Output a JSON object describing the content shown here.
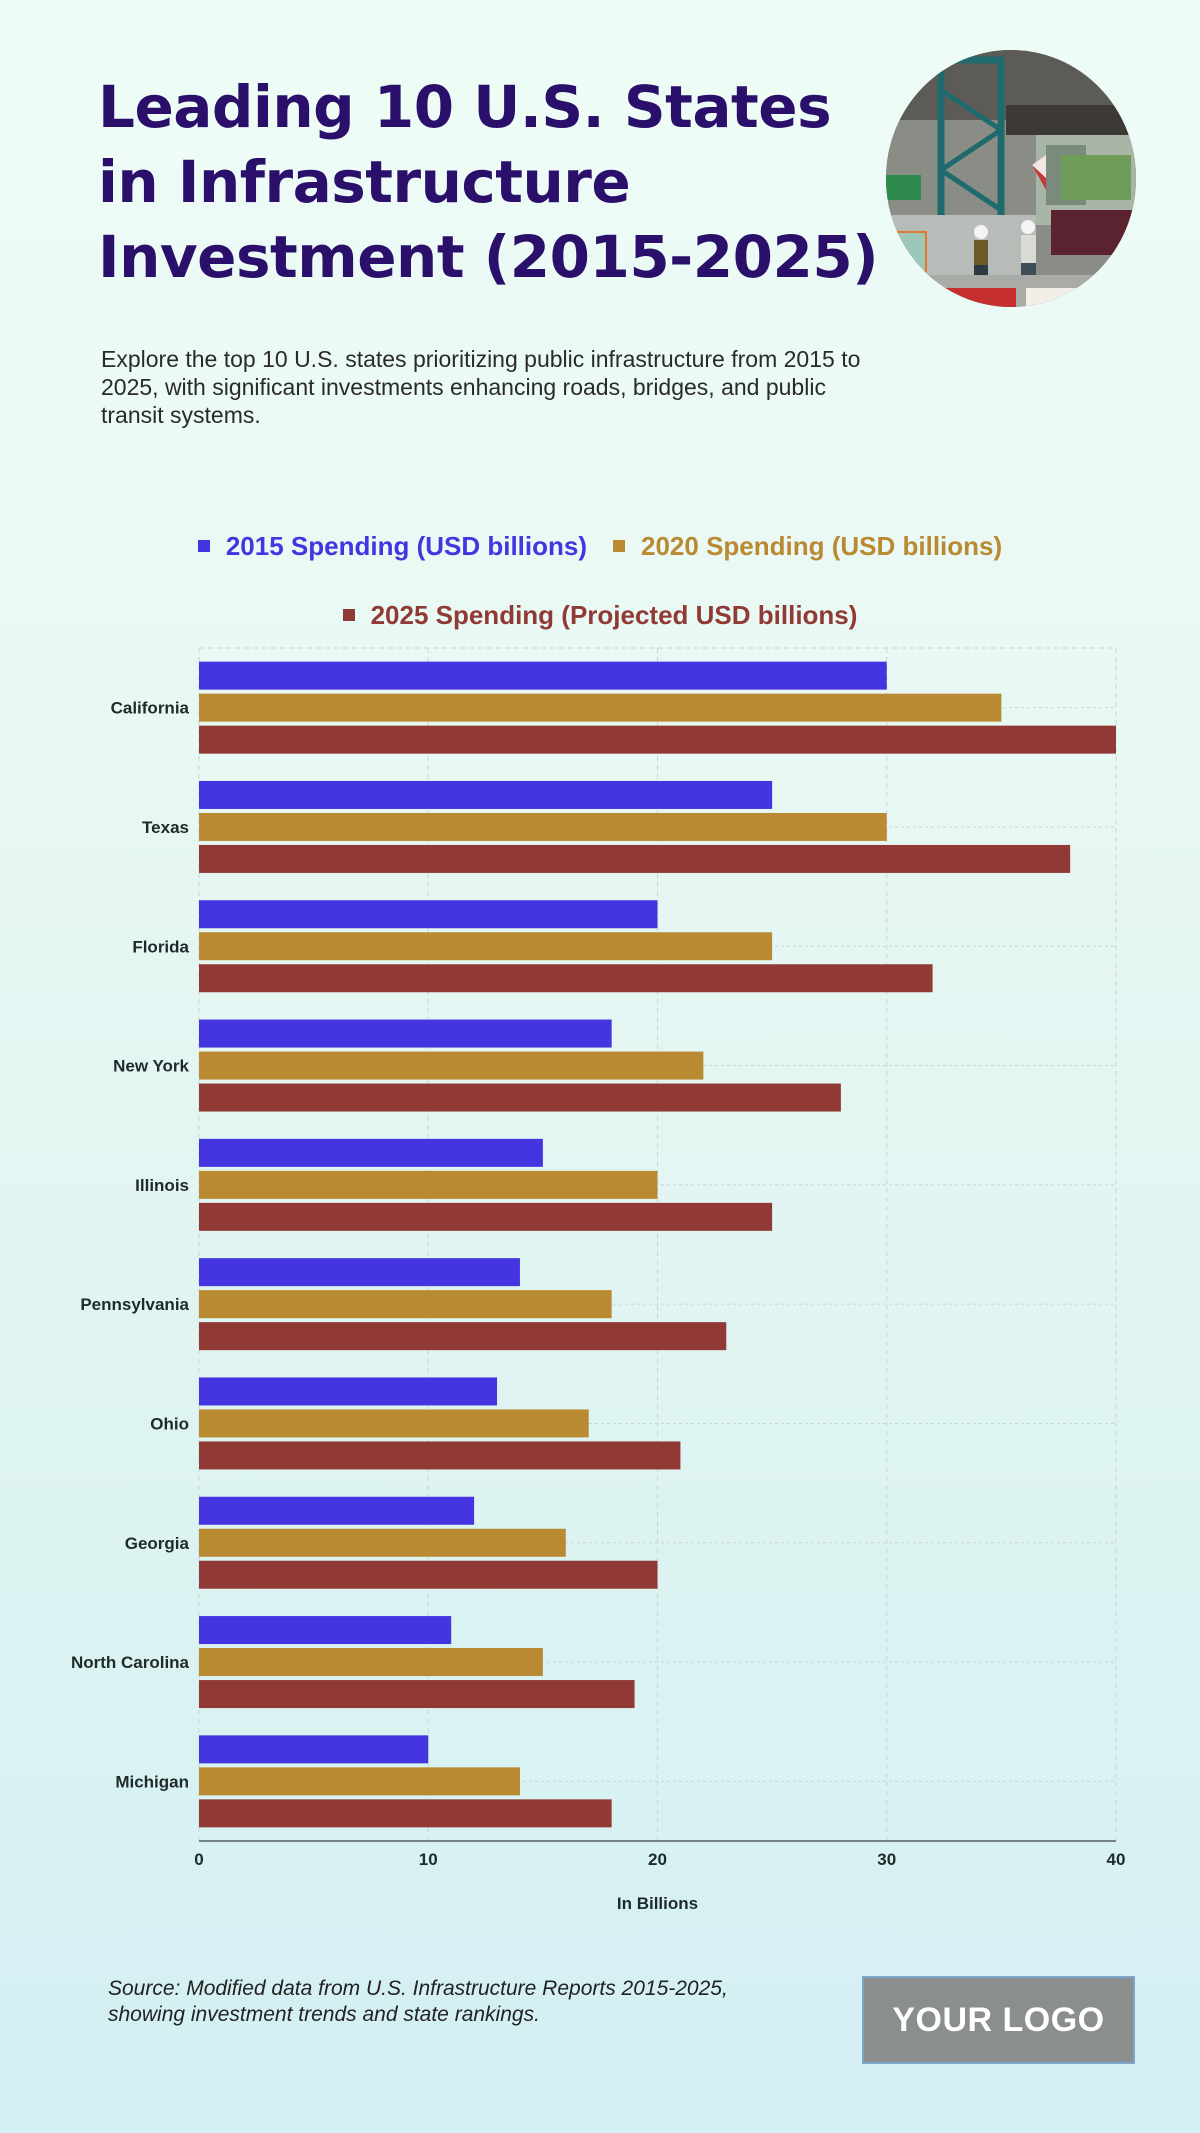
{
  "header": {
    "title_lines": [
      "Leading 10 U.S. States",
      "in Infrastructure",
      "Investment (2015-2025)"
    ],
    "subtitle": "Explore the top 10 U.S. states prioritizing public infrastructure from 2015 to 2025, with significant investments enhancing roads, bridges, and public transit systems.",
    "photo_alt": "construction-workers-photo"
  },
  "colors": {
    "title": "#2a0f6b",
    "series_2015": "#4435e0",
    "series_2020": "#b98a32",
    "series_2025": "#913a35"
  },
  "chart_data": {
    "type": "bar",
    "orientation": "horizontal",
    "title": "Leading 10 U.S. States in Infrastructure Investment (2015-2025)",
    "categories": [
      "California",
      "Texas",
      "Florida",
      "New York",
      "Illinois",
      "Pennsylvania",
      "Ohio",
      "Georgia",
      "North Carolina",
      "Michigan"
    ],
    "series": [
      {
        "name": "2015 Spending (USD billions)",
        "color": "#4435e0",
        "values": [
          30,
          25,
          20,
          18,
          15,
          14,
          13,
          12,
          11,
          10
        ]
      },
      {
        "name": "2020 Spending (USD billions)",
        "color": "#b98a32",
        "values": [
          35,
          30,
          25,
          22,
          20,
          18,
          17,
          16,
          15,
          14
        ]
      },
      {
        "name": "2025 Spending (Projected USD billions)",
        "color": "#913a35",
        "values": [
          40,
          38,
          32,
          28,
          25,
          23,
          21,
          20,
          19,
          18
        ]
      }
    ],
    "xlabel": "In Billions",
    "ylabel": "",
    "xlim": [
      0,
      40
    ],
    "xticks": [
      0,
      10,
      20,
      30,
      40
    ],
    "grid": true,
    "legend_placement": "top-center"
  },
  "footer": {
    "source": "Source: Modified data from U.S. Infrastructure Reports 2015-2025, showing investment trends and state rankings.",
    "logo_text": "YOUR LOGO"
  }
}
